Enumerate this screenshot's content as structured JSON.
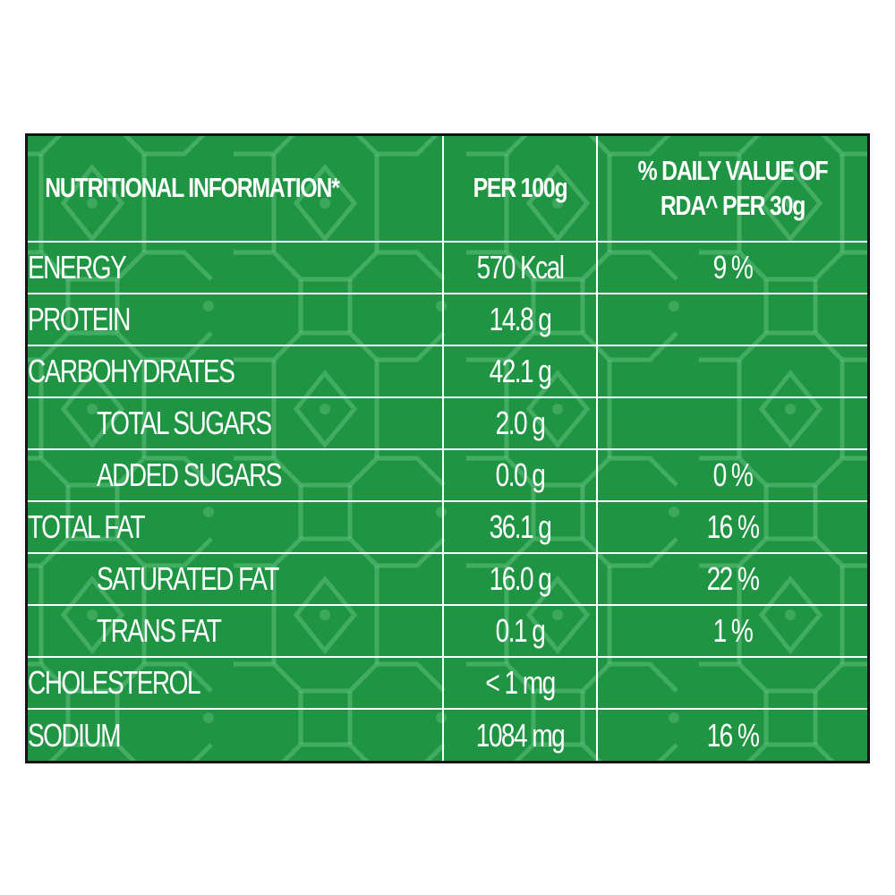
{
  "table": {
    "headers": {
      "name": "NUTRITIONAL INFORMATION*",
      "per100": "PER 100g",
      "dv_line1": "% DAILY VALUE OF",
      "dv_line2": "RDA^ PER 30g"
    },
    "rows": [
      {
        "name": "ENERGY",
        "per100": "570 Kcal",
        "dv": "9 %"
      },
      {
        "name": "PROTEIN",
        "per100": "14.8 g",
        "dv": ""
      },
      {
        "name": "CARBOHYDRATES",
        "per100": "42.1 g",
        "dv": ""
      },
      {
        "name": "TOTAL SUGARS",
        "per100": "2.0 g",
        "dv": ""
      },
      {
        "name": "ADDED SUGARS",
        "per100": "0.0 g",
        "dv": "0 %"
      },
      {
        "name": "TOTAL FAT",
        "per100": "36.1 g",
        "dv": "16 %"
      },
      {
        "name": "SATURATED FAT",
        "per100": "16.0 g",
        "dv": "22 %"
      },
      {
        "name": "TRANS FAT",
        "per100": "0.1 g",
        "dv": "1 %"
      },
      {
        "name": "CHOLESTEROL",
        "per100": "< 1 mg",
        "dv": ""
      },
      {
        "name": "SODIUM",
        "per100": "1084 mg",
        "dv": "16 %"
      }
    ]
  },
  "colors": {
    "panel_green": "#1f9443",
    "pattern_line": "#5fbe7d",
    "border": "#141414",
    "text": "#ffffff"
  }
}
